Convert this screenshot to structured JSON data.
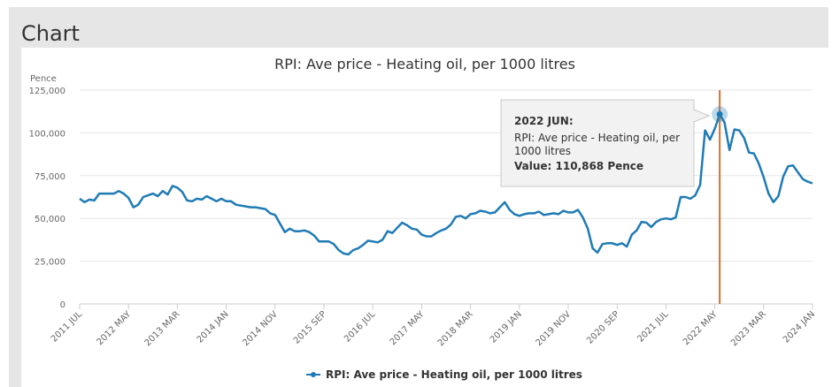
{
  "panel": {
    "title": "Chart"
  },
  "chart_data": {
    "type": "line",
    "title": "RPI: Ave price - Heating oil, per 1000 litres",
    "ylabel": "Pence",
    "xlabel": "",
    "ylim": [
      0,
      125000
    ],
    "yticks": [
      "0",
      "25,000",
      "50,000",
      "75,000",
      "100,000",
      "125,000"
    ],
    "xticks": [
      "2011 JUL",
      "2012 MAY",
      "2013 MAR",
      "2014 JAN",
      "2014 NOV",
      "2015 SEP",
      "2016 JUL",
      "2017 MAY",
      "2018 MAR",
      "2019 JAN",
      "2019 NOV",
      "2020 SEP",
      "2021 JUL",
      "2022 MAY",
      "2023 MAR",
      "2024 JAN"
    ],
    "legend": {
      "position": "bottom"
    },
    "grid": true,
    "series": [
      {
        "name": "RPI: Ave price - Heating oil, per 1000 litres",
        "color": "#1f7bb5",
        "x": [
          "2011 JUL",
          "2011 AUG",
          "2011 SEP",
          "2011 OCT",
          "2011 NOV",
          "2011 DEC",
          "2012 JAN",
          "2012 FEB",
          "2012 MAR",
          "2012 APR",
          "2012 MAY",
          "2012 JUN",
          "2012 JUL",
          "2012 AUG",
          "2012 SEP",
          "2012 OCT",
          "2012 NOV",
          "2012 DEC",
          "2013 JAN",
          "2013 FEB",
          "2013 MAR",
          "2013 APR",
          "2013 MAY",
          "2013 JUN",
          "2013 JUL",
          "2013 AUG",
          "2013 SEP",
          "2013 OCT",
          "2013 NOV",
          "2013 DEC",
          "2014 JAN",
          "2014 FEB",
          "2014 MAR",
          "2014 APR",
          "2014 MAY",
          "2014 JUN",
          "2014 JUL",
          "2014 AUG",
          "2014 SEP",
          "2014 OCT",
          "2014 NOV",
          "2014 DEC",
          "2015 JAN",
          "2015 FEB",
          "2015 MAR",
          "2015 APR",
          "2015 MAY",
          "2015 JUN",
          "2015 JUL",
          "2015 AUG",
          "2015 SEP",
          "2015 OCT",
          "2015 NOV",
          "2015 DEC",
          "2016 JAN",
          "2016 FEB",
          "2016 MAR",
          "2016 APR",
          "2016 MAY",
          "2016 JUN",
          "2016 JUL",
          "2016 AUG",
          "2016 SEP",
          "2016 OCT",
          "2016 NOV",
          "2016 DEC",
          "2017 JAN",
          "2017 FEB",
          "2017 MAR",
          "2017 APR",
          "2017 MAY",
          "2017 JUN",
          "2017 JUL",
          "2017 AUG",
          "2017 SEP",
          "2017 OCT",
          "2017 NOV",
          "2017 DEC",
          "2018 JAN",
          "2018 FEB",
          "2018 MAR",
          "2018 APR",
          "2018 MAY",
          "2018 JUN",
          "2018 JUL",
          "2018 AUG",
          "2018 SEP",
          "2018 OCT",
          "2018 NOV",
          "2018 DEC",
          "2019 JAN",
          "2019 FEB",
          "2019 MAR",
          "2019 APR",
          "2019 MAY",
          "2019 JUN",
          "2019 JUL",
          "2019 AUG",
          "2019 SEP",
          "2019 OCT",
          "2019 NOV",
          "2019 DEC",
          "2020 JAN",
          "2020 FEB",
          "2020 MAR",
          "2020 APR",
          "2020 MAY",
          "2020 JUN",
          "2020 JUL",
          "2020 AUG",
          "2020 SEP",
          "2020 OCT",
          "2020 NOV",
          "2020 DEC",
          "2021 JAN",
          "2021 FEB",
          "2021 MAR",
          "2021 APR",
          "2021 MAY",
          "2021 JUN",
          "2021 JUL",
          "2021 AUG",
          "2021 SEP",
          "2021 OCT",
          "2021 NOV",
          "2021 DEC",
          "2022 JAN",
          "2022 FEB",
          "2022 MAR",
          "2022 APR",
          "2022 MAY",
          "2022 JUN",
          "2022 JUL",
          "2022 AUG",
          "2022 SEP",
          "2022 OCT",
          "2022 NOV",
          "2022 DEC",
          "2023 JAN",
          "2023 FEB",
          "2023 MAR",
          "2023 APR",
          "2023 MAY",
          "2023 JUN",
          "2023 JUL",
          "2023 AUG",
          "2023 SEP",
          "2023 OCT",
          "2023 NOV",
          "2023 DEC",
          "2024 JAN"
        ],
        "values": [
          61500,
          59500,
          61000,
          60500,
          64500,
          64500,
          64500,
          64500,
          66000,
          64500,
          62000,
          56500,
          58000,
          62500,
          63500,
          64500,
          63000,
          66000,
          64000,
          69000,
          68000,
          65500,
          60500,
          60000,
          61500,
          61000,
          63000,
          61500,
          60000,
          61500,
          60000,
          60000,
          58000,
          57500,
          57000,
          56500,
          56500,
          56000,
          55500,
          53000,
          52000,
          47000,
          42000,
          44000,
          42500,
          42500,
          43000,
          42000,
          40000,
          36500,
          36500,
          36500,
          35000,
          31500,
          29500,
          29000,
          31500,
          32500,
          34500,
          37000,
          36500,
          36000,
          37500,
          42500,
          41500,
          44500,
          47500,
          46000,
          44000,
          43500,
          40500,
          39500,
          39500,
          41500,
          43000,
          44000,
          46500,
          51000,
          51500,
          50000,
          52500,
          53000,
          54500,
          54000,
          53000,
          53500,
          56500,
          59500,
          55000,
          52500,
          51500,
          52500,
          53000,
          53000,
          54000,
          52000,
          52500,
          53000,
          52500,
          54500,
          53500,
          53500,
          55000,
          50500,
          44000,
          32500,
          30000,
          35000,
          35500,
          35500,
          34500,
          35500,
          33500,
          40500,
          43000,
          48000,
          47500,
          45000,
          48000,
          49500,
          50000,
          49500,
          50500,
          62500,
          62500,
          61500,
          63500,
          69500,
          101500,
          96000,
          102500,
          110868,
          106000,
          90000,
          102000,
          101500,
          97000,
          88500,
          88000,
          82000,
          74000,
          64500,
          59500,
          63000,
          74500,
          80500,
          81000,
          77000,
          73000,
          71500,
          70500
        ]
      }
    ],
    "tooltip": {
      "date": "2022 JUN:",
      "line1": "RPI: Ave price - Heating oil, per",
      "line2": "1000 litres",
      "value": "Value: 110,868 Pence"
    },
    "highlight_index": 131
  }
}
